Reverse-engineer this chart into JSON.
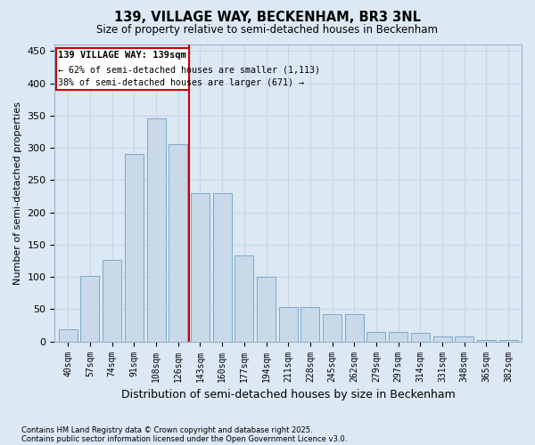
{
  "title1": "139, VILLAGE WAY, BECKENHAM, BR3 3NL",
  "title2": "Size of property relative to semi-detached houses in Beckenham",
  "xlabel": "Distribution of semi-detached houses by size in Beckenham",
  "ylabel": "Number of semi-detached properties",
  "categories": [
    "40sqm",
    "57sqm",
    "74sqm",
    "91sqm",
    "108sqm",
    "126sqm",
    "143sqm",
    "160sqm",
    "177sqm",
    "194sqm",
    "211sqm",
    "228sqm",
    "245sqm",
    "262sqm",
    "279sqm",
    "297sqm",
    "314sqm",
    "331sqm",
    "348sqm",
    "365sqm",
    "382sqm"
  ],
  "values": [
    19,
    102,
    127,
    290,
    345,
    305,
    230,
    230,
    133,
    100,
    53,
    53,
    42,
    42,
    15,
    15,
    13,
    8,
    8,
    2,
    2
  ],
  "bar_color": "#c9d9ea",
  "bar_edge_color": "#7aaac8",
  "grid_color": "#c8d4e4",
  "bg_color": "#dce8f4",
  "vline_color": "#cc0000",
  "annotation_title": "139 VILLAGE WAY: 139sqm",
  "annotation_line1": "← 62% of semi-detached houses are smaller (1,113)",
  "annotation_line2": "38% of semi-detached houses are larger (671) →",
  "annotation_box_color": "#cc0000",
  "ylim": [
    0,
    460
  ],
  "yticks": [
    0,
    50,
    100,
    150,
    200,
    250,
    300,
    350,
    400,
    450
  ],
  "footnote1": "Contains HM Land Registry data © Crown copyright and database right 2025.",
  "footnote2": "Contains public sector information licensed under the Open Government Licence v3.0."
}
